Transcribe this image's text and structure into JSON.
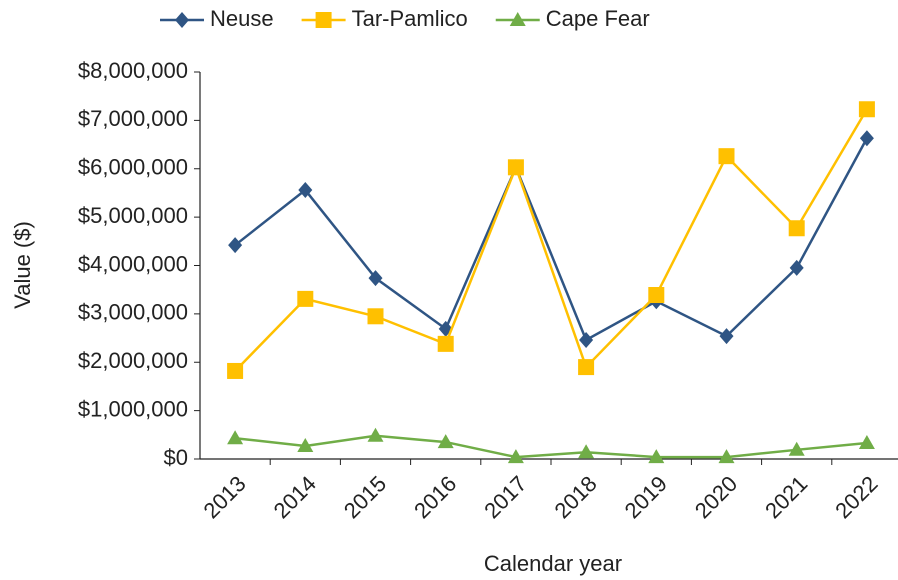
{
  "chart_data": {
    "type": "line",
    "x_label": "Calendar year",
    "y_label": "Value ($)",
    "categories": [
      "2013",
      "2014",
      "2015",
      "2016",
      "2017",
      "2018",
      "2019",
      "2020",
      "2021",
      "2022"
    ],
    "series": [
      {
        "name": "Neuse",
        "color": "#2f5584",
        "marker": "diamond",
        "values": [
          4420000,
          5560000,
          3740000,
          2690000,
          6030000,
          2460000,
          3260000,
          2540000,
          3950000,
          6630000
        ]
      },
      {
        "name": "Tar-Pamlico",
        "color": "#ffc000",
        "marker": "square",
        "values": [
          1820000,
          3310000,
          2950000,
          2380000,
          6030000,
          1900000,
          3390000,
          6260000,
          4770000,
          7230000
        ]
      },
      {
        "name": "Cape Fear",
        "color": "#70ad47",
        "marker": "triangle",
        "values": [
          430000,
          270000,
          480000,
          350000,
          40000,
          140000,
          40000,
          40000,
          190000,
          330000
        ]
      }
    ],
    "ylim": [
      0,
      8000000
    ],
    "yticks": [
      {
        "value": 0,
        "label": "$0"
      },
      {
        "value": 1000000,
        "label": "$1,000,000"
      },
      {
        "value": 2000000,
        "label": "$2,000,000"
      },
      {
        "value": 3000000,
        "label": "$3,000,000"
      },
      {
        "value": 4000000,
        "label": "$4,000,000"
      },
      {
        "value": 5000000,
        "label": "$5,000,000"
      },
      {
        "value": 6000000,
        "label": "$6,000,000"
      },
      {
        "value": 7000000,
        "label": "$7,000,000"
      },
      {
        "value": 8000000,
        "label": "$8,000,000"
      }
    ],
    "grid": false,
    "legend": "top"
  }
}
